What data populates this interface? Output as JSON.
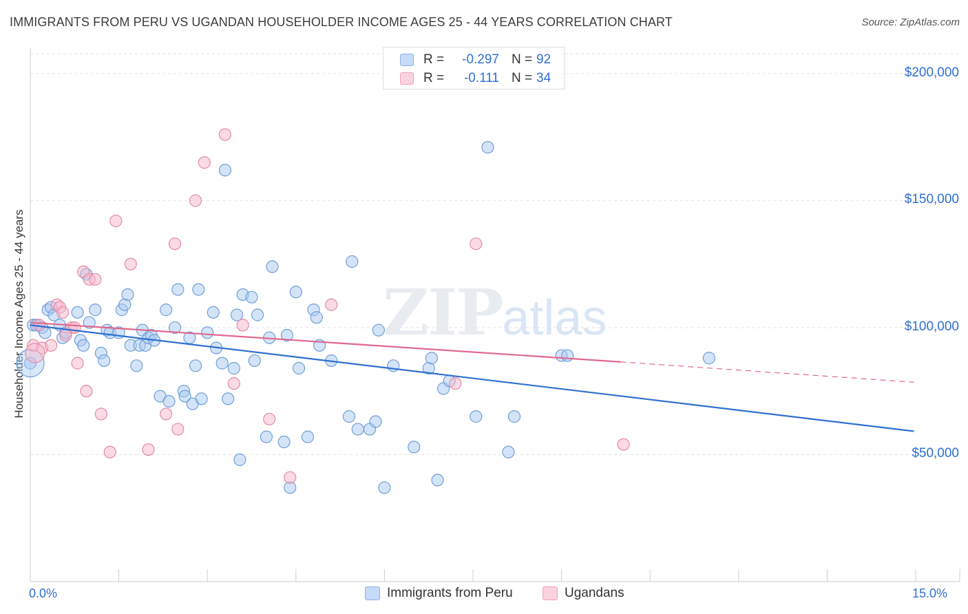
{
  "header": {
    "title": "IMMIGRANTS FROM PERU VS UGANDAN HOUSEHOLDER INCOME AGES 25 - 44 YEARS CORRELATION CHART",
    "source": "Source: ZipAtlas.com"
  },
  "watermark": {
    "zip": "ZIP",
    "atlas": "atlas"
  },
  "legend": {
    "rows": [
      {
        "r_label": "R =",
        "r_value": "-0.297",
        "n_label": "N =",
        "n_value": "92",
        "color": "#a9c9f2"
      },
      {
        "r_label": "R =",
        "r_value": "-0.111",
        "n_label": "N =",
        "n_value": "34",
        "color": "#f6b8cb"
      }
    ]
  },
  "colors": {
    "peru_fill": "#a9c9f2",
    "peru_stroke": "#6f9fd8",
    "peru_line": "#2f6fd0",
    "uganda_fill": "#f6b8cb",
    "uganda_stroke": "#e58aa6",
    "uganda_line": "#e0678f",
    "grid": "#e2e2e2",
    "axis_text": "#2f6fd0"
  },
  "chart_data": {
    "type": "scatter",
    "xlabel": "",
    "ylabel": "Householder Income Ages 25 - 44 years",
    "xlim": [
      0,
      15
    ],
    "ylim": [
      0,
      210000
    ],
    "x_tick_labels": [
      "0.0%",
      "15.0%"
    ],
    "y_ticks": [
      {
        "value": 200000,
        "label": "$200,000"
      },
      {
        "value": 150000,
        "label": "$150,000"
      },
      {
        "value": 100000,
        "label": "$100,000"
      },
      {
        "value": 50000,
        "label": "$50,000"
      }
    ],
    "grid": true,
    "legend_position": "top-center",
    "series": [
      {
        "name": "Immigrants from Peru",
        "trend": {
          "x": [
            0.0,
            14.97
          ],
          "y": [
            101000,
            59200
          ],
          "style": "solid"
        },
        "points": [
          [
            0.0,
            86000
          ],
          [
            0.05,
            101000
          ],
          [
            0.1,
            101000
          ],
          [
            0.2,
            100000
          ],
          [
            0.25,
            98000
          ],
          [
            0.3,
            107000
          ],
          [
            0.35,
            108000
          ],
          [
            0.4,
            105000
          ],
          [
            0.5,
            101000
          ],
          [
            0.55,
            96000
          ],
          [
            0.6,
            98000
          ],
          [
            0.8,
            106000
          ],
          [
            0.85,
            95000
          ],
          [
            0.9,
            93000
          ],
          [
            0.95,
            121000
          ],
          [
            1.0,
            102000
          ],
          [
            1.1,
            107000
          ],
          [
            1.2,
            90000
          ],
          [
            1.25,
            87000
          ],
          [
            1.3,
            99000
          ],
          [
            1.35,
            98000
          ],
          [
            1.5,
            98000
          ],
          [
            1.55,
            107000
          ],
          [
            1.6,
            109000
          ],
          [
            1.65,
            113000
          ],
          [
            1.7,
            93000
          ],
          [
            1.8,
            85000
          ],
          [
            1.85,
            93000
          ],
          [
            1.9,
            99000
          ],
          [
            1.95,
            93000
          ],
          [
            2.0,
            96000
          ],
          [
            2.05,
            97000
          ],
          [
            2.1,
            95000
          ],
          [
            2.2,
            73000
          ],
          [
            2.3,
            107000
          ],
          [
            2.35,
            71000
          ],
          [
            2.45,
            100000
          ],
          [
            2.5,
            115000
          ],
          [
            2.6,
            75000
          ],
          [
            2.62,
            73000
          ],
          [
            2.7,
            96000
          ],
          [
            2.75,
            70000
          ],
          [
            2.8,
            85000
          ],
          [
            2.85,
            115000
          ],
          [
            2.9,
            72000
          ],
          [
            3.0,
            98000
          ],
          [
            3.1,
            106000
          ],
          [
            3.15,
            92000
          ],
          [
            3.25,
            86000
          ],
          [
            3.3,
            162000
          ],
          [
            3.35,
            72000
          ],
          [
            3.45,
            84000
          ],
          [
            3.5,
            105000
          ],
          [
            3.55,
            48000
          ],
          [
            3.6,
            113000
          ],
          [
            3.75,
            112000
          ],
          [
            3.8,
            87000
          ],
          [
            3.85,
            105000
          ],
          [
            4.0,
            57000
          ],
          [
            4.05,
            96000
          ],
          [
            4.1,
            124000
          ],
          [
            4.3,
            55000
          ],
          [
            4.35,
            97000
          ],
          [
            4.4,
            37000
          ],
          [
            4.5,
            114000
          ],
          [
            4.55,
            84000
          ],
          [
            4.7,
            57000
          ],
          [
            4.8,
            107000
          ],
          [
            4.85,
            104000
          ],
          [
            4.9,
            93000
          ],
          [
            5.1,
            87000
          ],
          [
            5.4,
            65000
          ],
          [
            5.45,
            126000
          ],
          [
            5.55,
            60000
          ],
          [
            5.75,
            60000
          ],
          [
            5.85,
            63000
          ],
          [
            5.9,
            99000
          ],
          [
            6.0,
            37000
          ],
          [
            6.15,
            85000
          ],
          [
            6.5,
            53000
          ],
          [
            6.75,
            84000
          ],
          [
            6.8,
            88000
          ],
          [
            6.9,
            40000
          ],
          [
            7.0,
            76000
          ],
          [
            7.1,
            79000
          ],
          [
            7.55,
            65000
          ],
          [
            7.75,
            171000
          ],
          [
            8.1,
            51000
          ],
          [
            8.2,
            65000
          ],
          [
            9.0,
            89000
          ],
          [
            9.1,
            89000
          ],
          [
            11.5,
            88000
          ]
        ]
      },
      {
        "name": "Ugandans",
        "trend": {
          "x": [
            0.0,
            10.0,
            14.97
          ],
          "y": [
            102000,
            86500,
            78500
          ],
          "dashed_from": 10.0
        },
        "points": [
          [
            0.05,
            93000
          ],
          [
            0.2,
            92000
          ],
          [
            0.35,
            93000
          ],
          [
            0.45,
            109000
          ],
          [
            0.5,
            108000
          ],
          [
            0.55,
            106000
          ],
          [
            0.7,
            100000
          ],
          [
            0.75,
            100000
          ],
          [
            0.8,
            86000
          ],
          [
            0.9,
            122000
          ],
          [
            0.95,
            75000
          ],
          [
            1.0,
            119000
          ],
          [
            1.1,
            119000
          ],
          [
            1.2,
            66000
          ],
          [
            1.35,
            51000
          ],
          [
            1.45,
            142000
          ],
          [
            1.7,
            125000
          ],
          [
            2.0,
            52000
          ],
          [
            2.3,
            66000
          ],
          [
            2.45,
            133000
          ],
          [
            2.5,
            60000
          ],
          [
            2.8,
            150000
          ],
          [
            2.95,
            165000
          ],
          [
            3.3,
            176000
          ],
          [
            3.45,
            78000
          ],
          [
            3.6,
            101000
          ],
          [
            4.05,
            64000
          ],
          [
            4.4,
            41000
          ],
          [
            5.1,
            109000
          ],
          [
            7.2,
            78000
          ],
          [
            7.55,
            133000
          ],
          [
            10.05,
            54000
          ],
          [
            0.15,
            101000
          ],
          [
            0.6,
            97000
          ]
        ]
      }
    ]
  }
}
